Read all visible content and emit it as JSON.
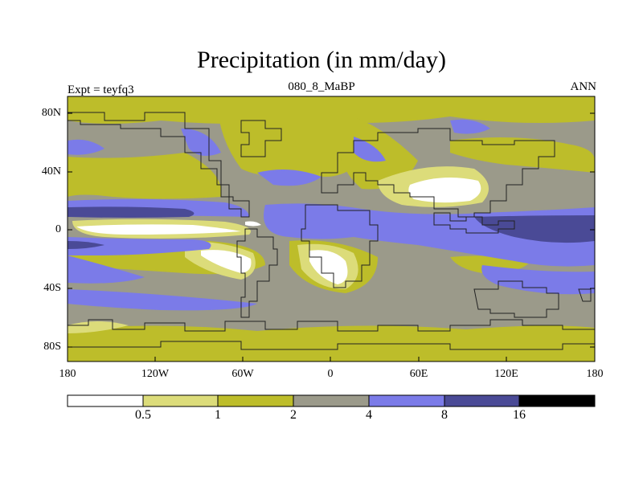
{
  "title": "Precipitation (in mm/day)",
  "expt_label": "Expt = teyfq3",
  "run_label": "080_8_MaBP",
  "season_label": "ANN",
  "y_ticks": [
    "80N",
    "40N",
    "0",
    "40S",
    "80S"
  ],
  "x_ticks": [
    "180",
    "120W",
    "60W",
    "0",
    "60E",
    "120E",
    "180"
  ],
  "colorbar": {
    "labels": [
      "0.5",
      "1",
      "2",
      "4",
      "8",
      "16"
    ],
    "colors": [
      "#ffffff",
      "#dcdc7a",
      "#bdbd2a",
      "#9b9a8a",
      "#7b7be8",
      "#4a4a96",
      "#000000"
    ]
  }
}
